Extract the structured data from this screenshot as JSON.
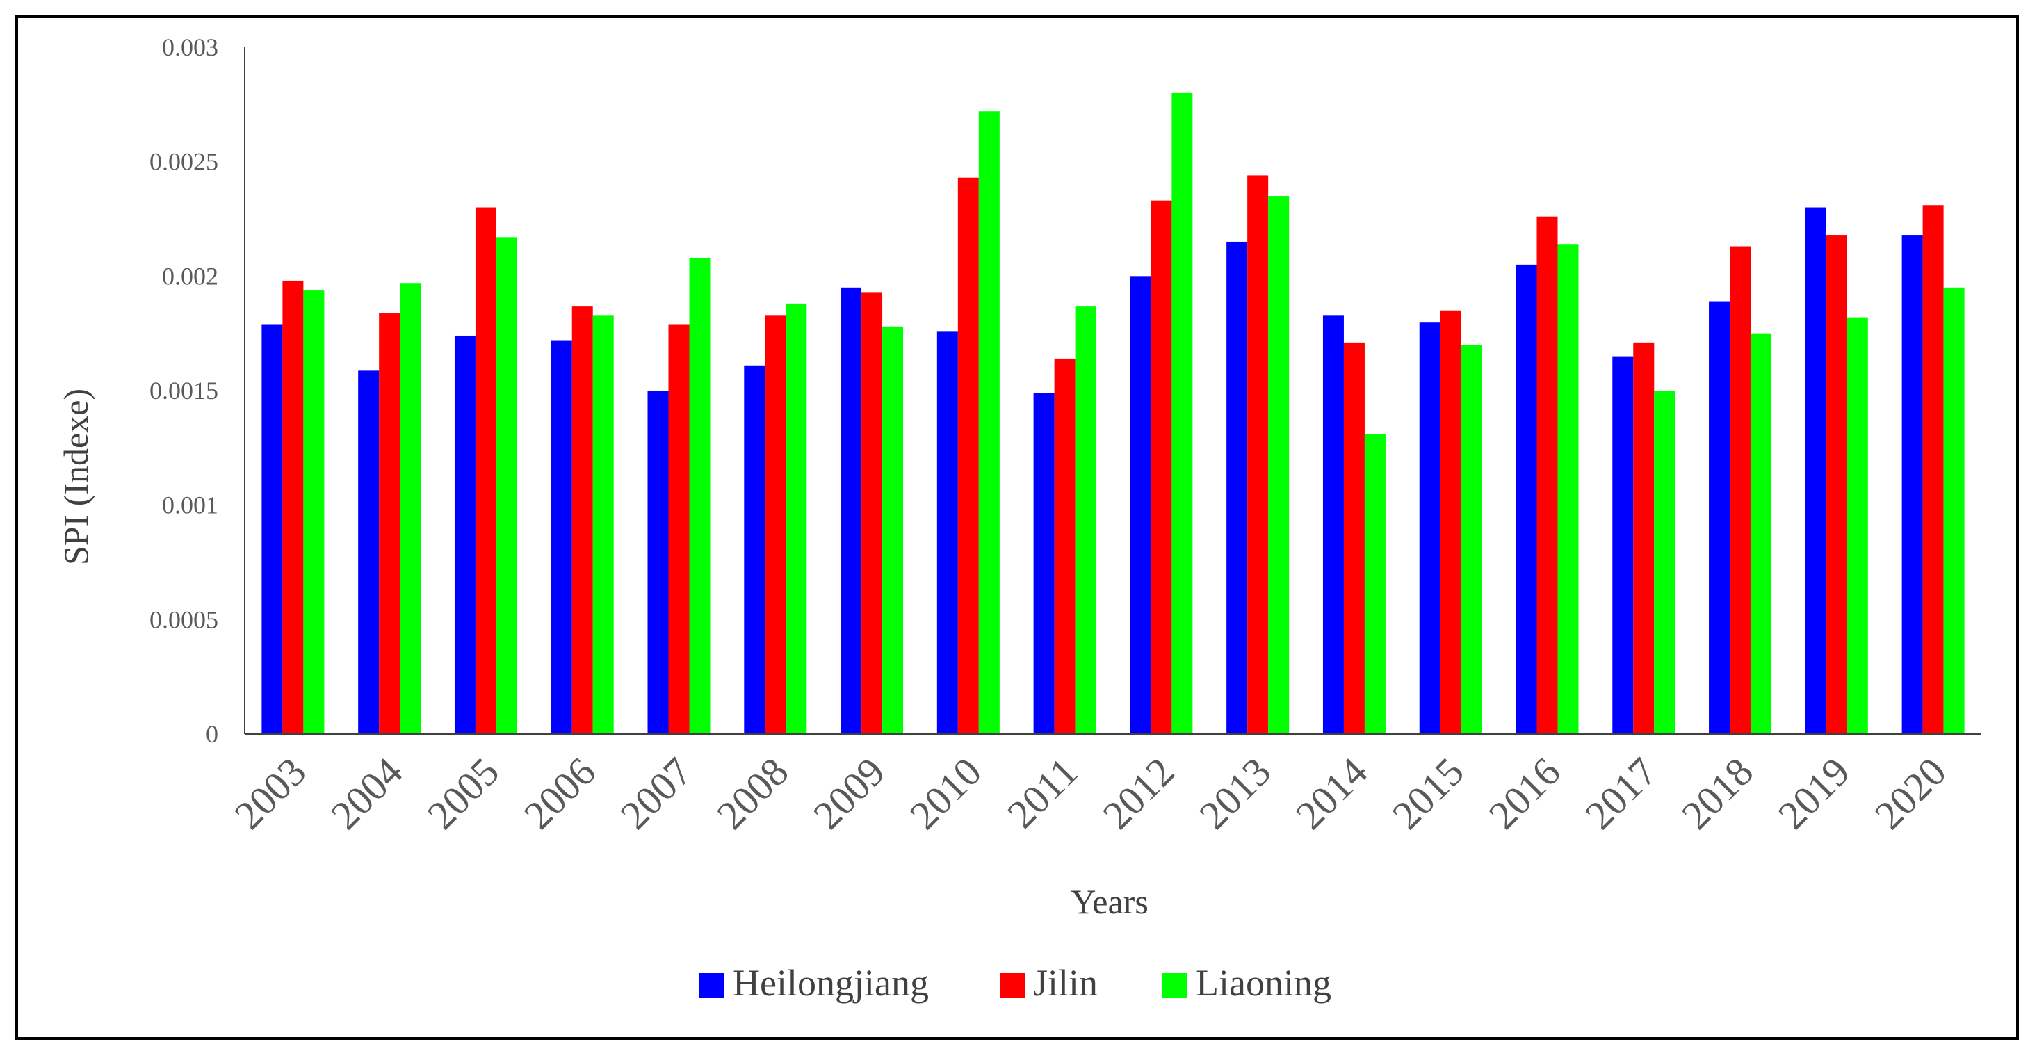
{
  "chart_data": {
    "type": "bar",
    "title": "",
    "xlabel": "Years",
    "ylabel": "SPI (Indexe)",
    "ylim": [
      0,
      0.003
    ],
    "yticks": [
      "0",
      "0.0005",
      "0.001",
      "0.0015",
      "0.002",
      "0.0025",
      "0.003"
    ],
    "grid": false,
    "legend_position": "bottom",
    "categories": [
      "2003",
      "2004",
      "2005",
      "2006",
      "2007",
      "2008",
      "2009",
      "2010",
      "2011",
      "2012",
      "2013",
      "2014",
      "2015",
      "2016",
      "2017",
      "2018",
      "2019",
      "2020"
    ],
    "series": [
      {
        "name": "Heilongjiang",
        "color": "#0000ff",
        "values": [
          0.00179,
          0.00159,
          0.00174,
          0.00172,
          0.0015,
          0.00161,
          0.00195,
          0.00176,
          0.00149,
          0.002,
          0.00215,
          0.00183,
          0.0018,
          0.00205,
          0.00165,
          0.00189,
          0.0023,
          0.00218
        ]
      },
      {
        "name": "Jilin",
        "color": "#ff0000",
        "values": [
          0.00198,
          0.00184,
          0.0023,
          0.00187,
          0.00179,
          0.00183,
          0.00193,
          0.00243,
          0.00164,
          0.00233,
          0.00244,
          0.00171,
          0.00185,
          0.00226,
          0.00171,
          0.00213,
          0.00218,
          0.00231
        ]
      },
      {
        "name": "Liaoning",
        "color": "#00ff00",
        "values": [
          0.00194,
          0.00197,
          0.00217,
          0.00183,
          0.00208,
          0.00188,
          0.00178,
          0.00272,
          0.00187,
          0.0028,
          0.00235,
          0.00131,
          0.0017,
          0.00214,
          0.0015,
          0.00175,
          0.00182,
          0.00195
        ]
      }
    ]
  }
}
